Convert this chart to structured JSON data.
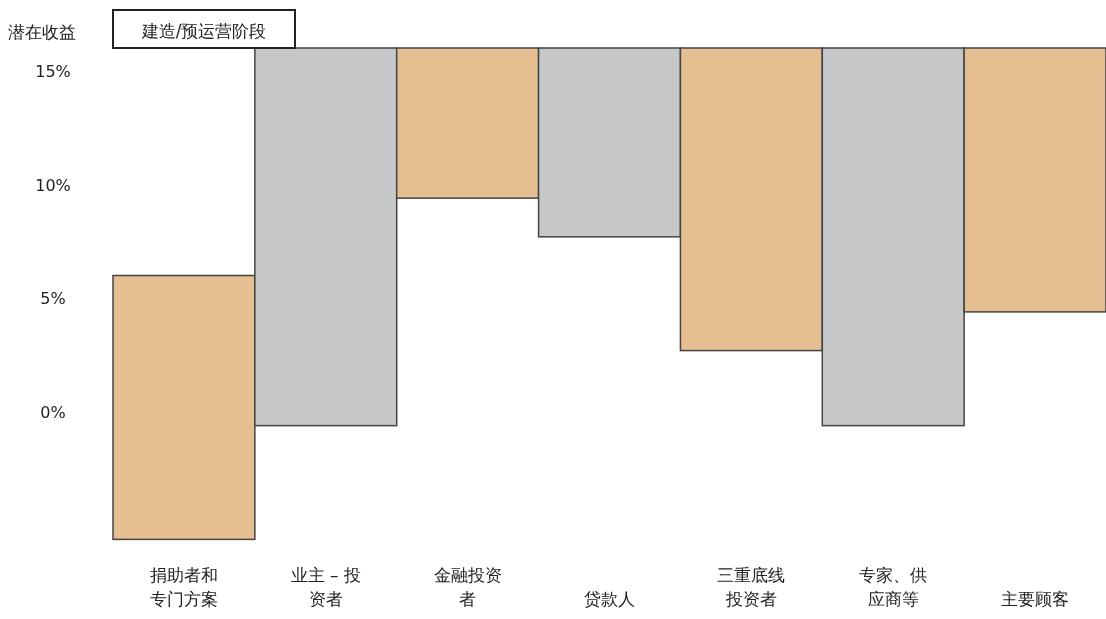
{
  "chart_data": {
    "type": "bar",
    "title": "建造/预运营阶段",
    "ylabel": "潜在收益",
    "categories": [
      "捐助者和专门方案",
      "业主 – 投资者",
      "金融投资者",
      "贷款人",
      "三重底线投资者",
      "专家、供应商等",
      "主要顾客"
    ],
    "base": [
      -5.6,
      -0.6,
      9.4,
      7.7,
      2.7,
      -0.6,
      4.4
    ],
    "values": [
      11.6,
      16.6,
      6.6,
      8.3,
      13.3,
      16.6,
      11.6
    ],
    "colors": [
      "#e5bf92",
      "#c6c7c9",
      "#e5bf92",
      "#c6c7c9",
      "#e5bf92",
      "#c6c7c9",
      "#e5bf92"
    ],
    "ylim": [
      -5.6,
      16
    ],
    "yticks": [
      {
        "value": 0,
        "label": "0%"
      },
      {
        "value": 5,
        "label": "5%"
      },
      {
        "value": 10,
        "label": "10%"
      },
      {
        "value": 15,
        "label": "15%"
      }
    ]
  }
}
